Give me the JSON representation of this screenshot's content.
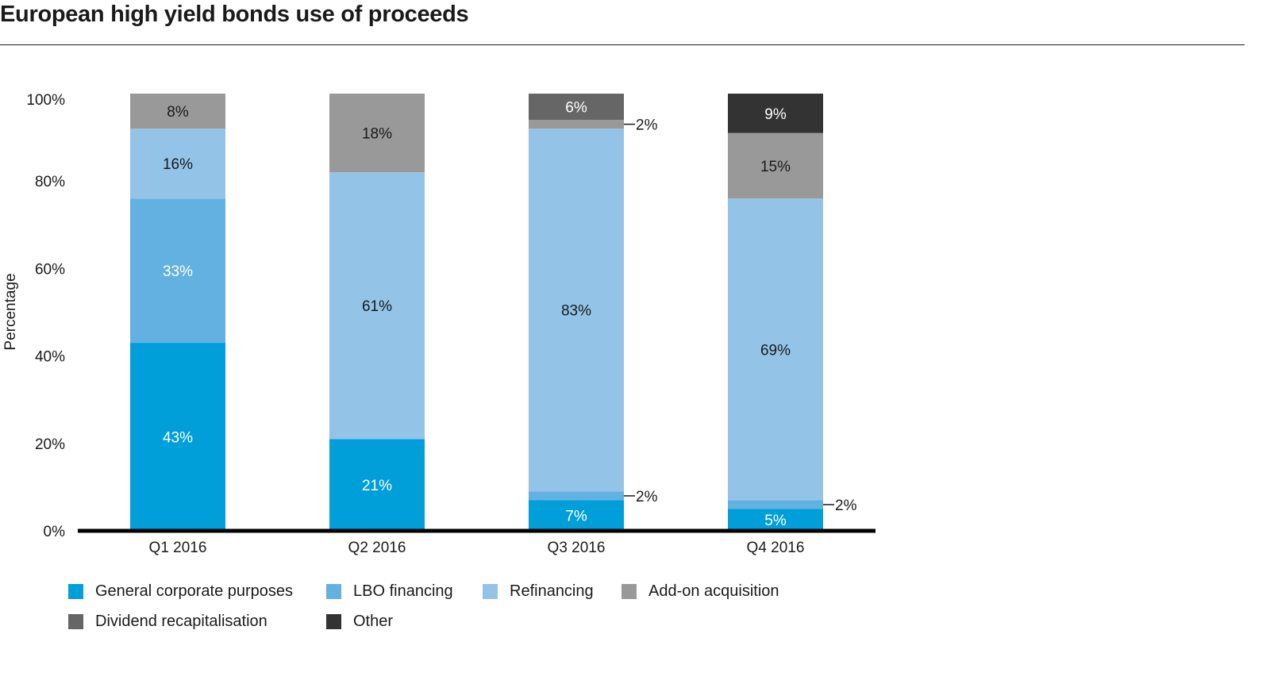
{
  "title": "European high yield bonds use of proceeds",
  "chart_data": {
    "type": "bar",
    "stacked": true,
    "title": "European high yield bonds use of proceeds",
    "xlabel": "",
    "ylabel": "Percentage",
    "ylim": [
      0,
      100
    ],
    "yticks": [
      "0%",
      "20%",
      "40%",
      "60%",
      "80%",
      "100%"
    ],
    "ytick_values": [
      0,
      20,
      40,
      60,
      80,
      100
    ],
    "grid": false,
    "legend_position": "bottom",
    "categories": [
      "Q1 2016",
      "Q2 2016",
      "Q3 2016",
      "Q4 2016"
    ],
    "series": [
      {
        "name": "General corporate purposes",
        "color": "#009fda",
        "label_color": "#ffffff",
        "values": [
          43,
          21,
          7,
          5
        ]
      },
      {
        "name": "LBO financing",
        "color": "#63b1e1",
        "label_color": "#ffffff",
        "values": [
          33,
          0,
          2,
          2
        ]
      },
      {
        "name": "Refinancing",
        "color": "#93c4e7",
        "label_color": "#1a1a1a",
        "values": [
          16,
          61,
          83,
          69
        ]
      },
      {
        "name": "Add-on acquisition",
        "color": "#999999",
        "label_color": "#1a1a1a",
        "values": [
          8,
          18,
          2,
          15
        ]
      },
      {
        "name": "Dividend recapitalisation",
        "color": "#666666",
        "label_color": "#ffffff",
        "values": [
          0,
          0,
          6,
          0
        ]
      },
      {
        "name": "Other",
        "color": "#333333",
        "label_color": "#ffffff",
        "values": [
          0,
          0,
          0,
          9
        ]
      }
    ],
    "data_labels": [
      {
        "category": "Q1 2016",
        "series": "General corporate purposes",
        "text": "43%",
        "outside": false
      },
      {
        "category": "Q1 2016",
        "series": "LBO financing",
        "text": "33%",
        "outside": false
      },
      {
        "category": "Q1 2016",
        "series": "Refinancing",
        "text": "16%",
        "outside": false
      },
      {
        "category": "Q1 2016",
        "series": "Add-on acquisition",
        "text": "8%",
        "outside": false
      },
      {
        "category": "Q2 2016",
        "series": "General corporate purposes",
        "text": "21%",
        "outside": false
      },
      {
        "category": "Q2 2016",
        "series": "Refinancing",
        "text": "61%",
        "outside": false
      },
      {
        "category": "Q2 2016",
        "series": "Add-on acquisition",
        "text": "18%",
        "outside": false
      },
      {
        "category": "Q3 2016",
        "series": "General corporate purposes",
        "text": "7%",
        "outside": false
      },
      {
        "category": "Q3 2016",
        "series": "LBO financing",
        "text": "2%",
        "outside": true
      },
      {
        "category": "Q3 2016",
        "series": "Refinancing",
        "text": "83%",
        "outside": false
      },
      {
        "category": "Q3 2016",
        "series": "Add-on acquisition",
        "text": "2%",
        "outside": true
      },
      {
        "category": "Q3 2016",
        "series": "Dividend recapitalisation",
        "text": "6%",
        "outside": false
      },
      {
        "category": "Q4 2016",
        "series": "General corporate purposes",
        "text": "5%",
        "outside": false
      },
      {
        "category": "Q4 2016",
        "series": "LBO financing",
        "text": "2%",
        "outside": true
      },
      {
        "category": "Q4 2016",
        "series": "Refinancing",
        "text": "69%",
        "outside": false
      },
      {
        "category": "Q4 2016",
        "series": "Add-on acquisition",
        "text": "15%",
        "outside": false
      },
      {
        "category": "Q4 2016",
        "series": "Other",
        "text": "9%",
        "outside": false
      }
    ]
  }
}
